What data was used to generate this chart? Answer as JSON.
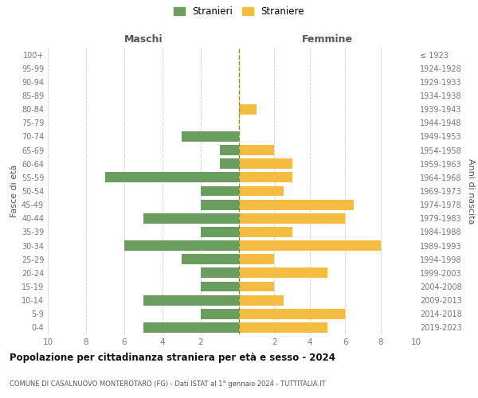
{
  "age_groups": [
    "0-4",
    "5-9",
    "10-14",
    "15-19",
    "20-24",
    "25-29",
    "30-34",
    "35-39",
    "40-44",
    "45-49",
    "50-54",
    "55-59",
    "60-64",
    "65-69",
    "70-74",
    "75-79",
    "80-84",
    "85-89",
    "90-94",
    "95-99",
    "100+"
  ],
  "birth_years": [
    "2019-2023",
    "2014-2018",
    "2009-2013",
    "2004-2008",
    "1999-2003",
    "1994-1998",
    "1989-1993",
    "1984-1988",
    "1979-1983",
    "1974-1978",
    "1969-1973",
    "1964-1968",
    "1959-1963",
    "1954-1958",
    "1949-1953",
    "1944-1948",
    "1939-1943",
    "1934-1938",
    "1929-1933",
    "1924-1928",
    "≤ 1923"
  ],
  "males": [
    5,
    2,
    5,
    2,
    2,
    3,
    6,
    2,
    5,
    2,
    2,
    7,
    1,
    1,
    3,
    0,
    0,
    0,
    0,
    0,
    0
  ],
  "females": [
    5,
    6,
    2.5,
    2,
    5,
    2,
    8,
    3,
    6,
    6.5,
    2.5,
    3,
    3,
    2,
    0,
    0,
    1,
    0,
    0,
    0,
    0
  ],
  "male_color": "#6a9e5e",
  "female_color": "#f5bc42",
  "dashed_line_color": "#8b8b3a",
  "background_color": "#ffffff",
  "grid_color": "#cccccc",
  "title": "Popolazione per cittadinanza straniera per età e sesso - 2024",
  "subtitle": "COMUNE DI CASALNUOVO MONTEROTARO (FG) - Dati ISTAT al 1° gennaio 2024 - TUTTITALIA.IT",
  "header_left": "Maschi",
  "header_right": "Femmine",
  "ylabel_left": "Fasce di età",
  "ylabel_right": "Anni di nascita",
  "legend_male": "Stranieri",
  "legend_female": "Straniere",
  "xlim": 10,
  "xticks": [
    0,
    2,
    4,
    6,
    8,
    10
  ],
  "xtick_labels_left": [
    "0",
    "2",
    "4",
    "6",
    "8",
    "10"
  ],
  "xtick_labels_display_left": [
    "10",
    "6",
    "2",
    ""
  ],
  "bar_height": 0.75
}
